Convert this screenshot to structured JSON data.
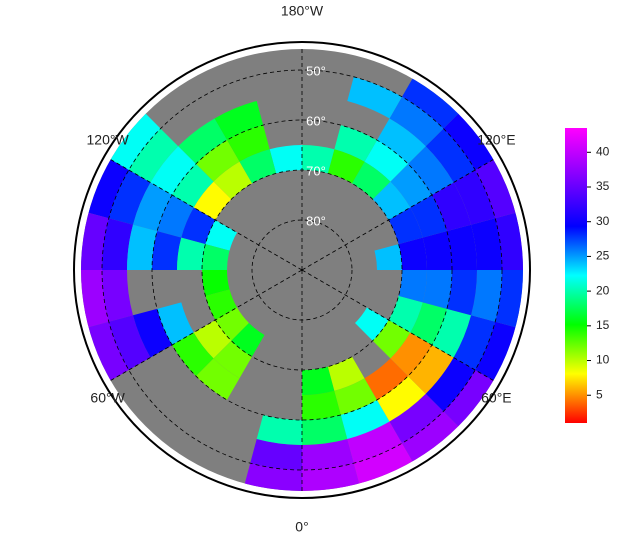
{
  "map": {
    "projection": "north polar stereographic",
    "lon_labels": [
      {
        "lon": 180,
        "label": "180°W"
      },
      {
        "lon": -120,
        "label": "120°W"
      },
      {
        "lon": -60,
        "label": "60°W"
      },
      {
        "lon": 0,
        "label": "0°"
      },
      {
        "lon": 60,
        "label": "60°E"
      },
      {
        "lon": 120,
        "label": "120°E"
      }
    ],
    "lat_labels": [
      {
        "lat": 50,
        "label": "50°"
      },
      {
        "lat": 60,
        "label": "60°"
      },
      {
        "lat": 70,
        "label": "70°"
      },
      {
        "lat": 80,
        "label": "80°"
      }
    ],
    "grid": {
      "lon_edges": [
        -180,
        -165,
        -150,
        -135,
        -120,
        -105,
        -90,
        -75,
        -60,
        -45,
        -30,
        -15,
        0,
        15,
        30,
        45,
        60,
        75,
        90,
        105,
        120,
        135,
        150,
        165,
        180
      ],
      "lat_edges": [
        45,
        50,
        55,
        60,
        65,
        70,
        75
      ],
      "values": [
        [
          null,
          null,
          null,
          22,
          30,
          35,
          38,
          36,
          null,
          null,
          null,
          37,
          39,
          41,
          38,
          36,
          30,
          28,
          32,
          34,
          30,
          28,
          null,
          null
        ],
        [
          null,
          null,
          null,
          20,
          28,
          32,
          36,
          34,
          null,
          null,
          null,
          35,
          38,
          40,
          36,
          30,
          28,
          26,
          30,
          32,
          28,
          26,
          24,
          null
        ],
        [
          null,
          16,
          18,
          22,
          25,
          24,
          null,
          30,
          null,
          null,
          null,
          20,
          18,
          22,
          8,
          6,
          20,
          28,
          30,
          32,
          26,
          24,
          null,
          null
        ],
        [
          null,
          14,
          12,
          20,
          26,
          28,
          null,
          24,
          14,
          12,
          null,
          null,
          14,
          12,
          4,
          5,
          18,
          26,
          30,
          28,
          25,
          22,
          20,
          null
        ],
        [
          22,
          18,
          10,
          8,
          28,
          20,
          null,
          null,
          10,
          12,
          null,
          null,
          16,
          10,
          null,
          12,
          20,
          26,
          30,
          28,
          24,
          18,
          14,
          20
        ],
        [
          null,
          null,
          null,
          null,
          22,
          18,
          15,
          14,
          12,
          16,
          null,
          null,
          null,
          null,
          null,
          22,
          null,
          null,
          24,
          null,
          null,
          null,
          null,
          null
        ]
      ]
    },
    "colorbar": {
      "clim": [
        1,
        43.5
      ],
      "ticks": [
        5,
        10,
        15,
        20,
        25,
        30,
        35,
        40
      ],
      "colormap": [
        "#ff0000",
        "#ffff00",
        "#00ff00",
        "#00ffff",
        "#0000ff",
        "#8000ff",
        "#ff00ff"
      ]
    }
  }
}
